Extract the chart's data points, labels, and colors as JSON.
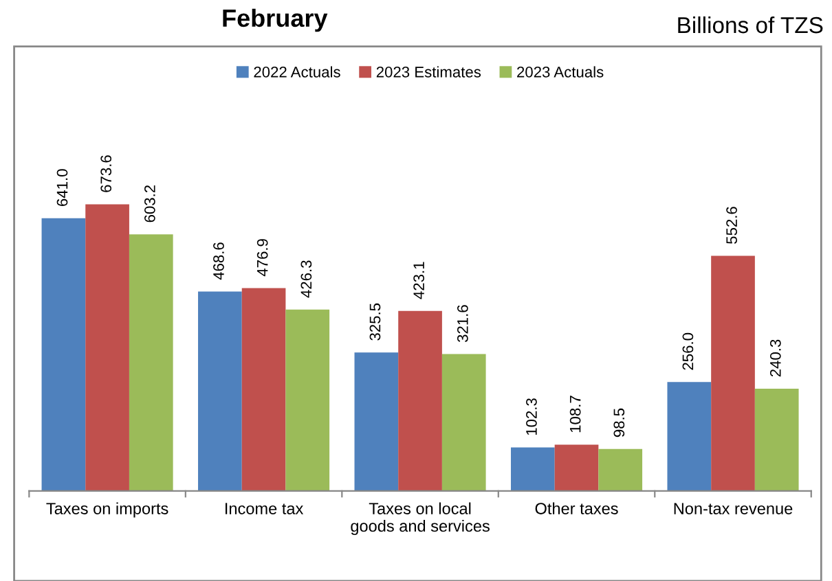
{
  "chart_data": {
    "type": "bar",
    "title": "February",
    "subtitle": "Billions of TZS",
    "categories": [
      "Taxes on imports",
      "Income tax",
      "Taxes on local\ngoods and services",
      "Other taxes",
      "Non-tax revenue"
    ],
    "series": [
      {
        "name": "2022 Actuals",
        "color": "#4f81bd",
        "values": [
          641.0,
          468.6,
          325.5,
          102.3,
          256.0
        ],
        "value_labels": [
          "641.0",
          "468.6",
          "325.5",
          "102.3",
          "256.0"
        ]
      },
      {
        "name": "2023 Estimates",
        "color": "#c0504d",
        "values": [
          673.6,
          476.9,
          423.1,
          108.7,
          552.6
        ],
        "value_labels": [
          "673.6",
          "476.9",
          "423.1",
          "108.7",
          "552.6"
        ]
      },
      {
        "name": "2023 Actuals",
        "color": "#9bbb59",
        "values": [
          603.2,
          426.3,
          321.6,
          98.5,
          240.3
        ],
        "value_labels": [
          "603.2",
          "426.3",
          "321.6",
          "98.5",
          "240.3"
        ]
      }
    ],
    "legend": "top",
    "grid": false
  }
}
